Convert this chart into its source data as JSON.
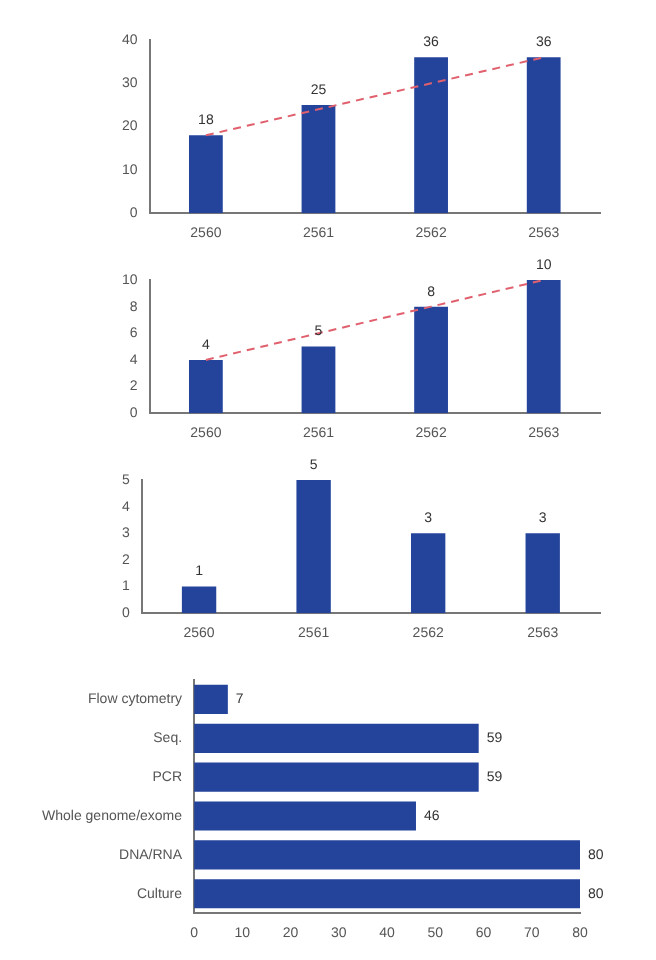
{
  "chart_data": [
    {
      "type": "bar",
      "categories": [
        "2560",
        "2561",
        "2562",
        "2563"
      ],
      "series": [
        {
          "type": "bar",
          "color": "#24449c",
          "values": [
            18,
            25,
            36,
            36
          ],
          "value_labels": [
            "18",
            "25",
            "36",
            "36"
          ]
        },
        {
          "type": "line",
          "color": "#e0606e",
          "values": [
            18,
            24,
            30,
            36
          ],
          "line_style": "dashed",
          "marker": "none"
        }
      ],
      "ylim": [
        0,
        40
      ],
      "yticks": [
        0,
        10,
        20,
        30,
        40
      ]
    },
    {
      "type": "bar",
      "categories": [
        "2560",
        "2561",
        "2562",
        "2563"
      ],
      "series": [
        {
          "type": "bar",
          "color": "#24449c",
          "values": [
            4,
            5,
            8,
            10
          ],
          "value_labels": [
            "4",
            "5",
            "8",
            "10"
          ]
        },
        {
          "type": "line",
          "color": "#e0606e",
          "values": [
            4,
            6,
            8,
            10
          ],
          "line_style": "dashed",
          "marker": "none"
        }
      ],
      "ylim": [
        0,
        10
      ],
      "yticks": [
        0,
        2,
        4,
        6,
        8,
        10
      ]
    },
    {
      "type": "bar",
      "categories": [
        "2560",
        "2561",
        "2562",
        "2563"
      ],
      "values": [
        1,
        5,
        3,
        3
      ],
      "color": "#24449c",
      "ylim": [
        0,
        5
      ],
      "yticks": [
        0,
        1,
        2,
        3,
        4,
        5
      ],
      "data_labels": true
    },
    {
      "type": "bar",
      "orientation": "horizontal",
      "categories": [
        "Flow cytometry",
        "Seq.",
        "PCR",
        "Whole genome/exome",
        "DNA/RNA",
        "Culture"
      ],
      "values": [
        7,
        59,
        59,
        46,
        80,
        80
      ],
      "color": "#24449c",
      "xlim": [
        0,
        80
      ],
      "xticks": [
        0,
        10,
        20,
        30,
        40,
        50,
        60,
        70,
        80
      ],
      "data_labels": true
    }
  ]
}
